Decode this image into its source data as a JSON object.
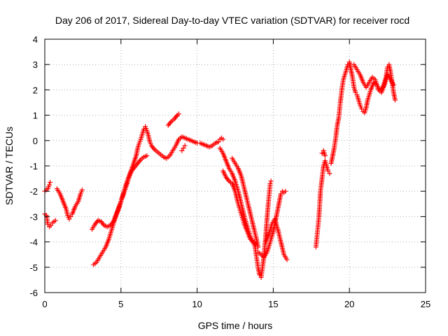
{
  "chart_data": {
    "type": "scatter",
    "title": "Day 206 of 2017, Sidereal Day-to-day VTEC variation (SDTVAR) for receiver rocd",
    "xlabel": "GPS time / hours",
    "ylabel": "SDTVAR / TECUs",
    "xlim": [
      0,
      25
    ],
    "ylim": [
      -6,
      4
    ],
    "xticks": [
      "0",
      "5",
      "10",
      "15",
      "20",
      "25"
    ],
    "yticks": [
      "-6",
      "-5",
      "-4",
      "-3",
      "-2",
      "-1",
      "0",
      "1",
      "2",
      "3",
      "4"
    ],
    "grid": true,
    "marker": "+",
    "color": "#ff0000",
    "segments": [
      [
        [
          0.0,
          -2.9
        ],
        [
          0.1,
          -2.95
        ],
        [
          0.15,
          -3.1
        ],
        [
          0.2,
          -3.3
        ],
        [
          0.3,
          -3.4
        ],
        [
          0.4,
          -3.35
        ],
        [
          0.5,
          -3.25
        ],
        [
          0.6,
          -3.2
        ],
        [
          0.7,
          -3.15
        ]
      ],
      [
        [
          0.0,
          -2.0
        ],
        [
          0.1,
          -1.95
        ],
        [
          0.2,
          -1.9
        ],
        [
          0.3,
          -1.75
        ],
        [
          0.35,
          -1.65
        ]
      ],
      [
        [
          0.8,
          -1.9
        ],
        [
          1.0,
          -2.1
        ],
        [
          1.2,
          -2.4
        ],
        [
          1.4,
          -2.7
        ],
        [
          1.5,
          -2.95
        ],
        [
          1.6,
          -3.1
        ],
        [
          1.7,
          -3.0
        ],
        [
          1.8,
          -2.9
        ],
        [
          2.0,
          -2.6
        ],
        [
          2.2,
          -2.4
        ],
        [
          2.35,
          -2.1
        ],
        [
          2.45,
          -1.95
        ]
      ],
      [
        [
          3.1,
          -3.5
        ],
        [
          3.3,
          -3.3
        ],
        [
          3.5,
          -3.15
        ],
        [
          3.7,
          -3.2
        ],
        [
          3.9,
          -3.35
        ],
        [
          4.1,
          -3.4
        ],
        [
          4.3,
          -3.35
        ],
        [
          4.5,
          -3.2
        ],
        [
          4.7,
          -2.9
        ],
        [
          4.9,
          -2.6
        ],
        [
          5.1,
          -2.2
        ],
        [
          5.3,
          -1.8
        ],
        [
          5.5,
          -1.45
        ],
        [
          5.7,
          -1.2
        ],
        [
          5.9,
          -1.05
        ],
        [
          6.1,
          -0.9
        ],
        [
          6.3,
          -0.75
        ],
        [
          6.5,
          -0.65
        ],
        [
          6.7,
          -0.6
        ]
      ],
      [
        [
          3.2,
          -4.9
        ],
        [
          3.4,
          -4.8
        ],
        [
          3.6,
          -4.6
        ],
        [
          3.8,
          -4.4
        ],
        [
          4.0,
          -4.2
        ],
        [
          4.2,
          -3.9
        ],
        [
          4.4,
          -3.5
        ],
        [
          4.6,
          -3.1
        ],
        [
          4.8,
          -2.75
        ],
        [
          5.0,
          -2.4
        ],
        [
          5.2,
          -2.05
        ],
        [
          5.4,
          -1.7
        ],
        [
          5.6,
          -1.3
        ],
        [
          5.8,
          -0.95
        ],
        [
          6.0,
          -0.6
        ],
        [
          6.1,
          -0.3
        ],
        [
          6.2,
          -0.1
        ],
        [
          6.3,
          0.05
        ],
        [
          6.4,
          0.25
        ],
        [
          6.5,
          0.45
        ],
        [
          6.6,
          0.55
        ],
        [
          6.7,
          0.4
        ],
        [
          6.8,
          0.2
        ],
        [
          6.9,
          -0.05
        ],
        [
          7.0,
          -0.2
        ],
        [
          7.2,
          -0.35
        ],
        [
          7.4,
          -0.45
        ],
        [
          7.6,
          -0.55
        ],
        [
          7.8,
          -0.65
        ],
        [
          8.0,
          -0.7
        ],
        [
          8.2,
          -0.6
        ],
        [
          8.4,
          -0.4
        ],
        [
          8.6,
          -0.2
        ],
        [
          8.8,
          0.05
        ],
        [
          9.0,
          0.15
        ],
        [
          9.2,
          0.1
        ],
        [
          9.4,
          0.05
        ],
        [
          9.6,
          0.0
        ],
        [
          9.8,
          -0.05
        ],
        [
          10.0,
          -0.1
        ],
        [
          10.2,
          -0.1
        ],
        [
          10.4,
          -0.15
        ],
        [
          10.6,
          -0.2
        ],
        [
          10.8,
          -0.25
        ],
        [
          11.0,
          -0.2
        ],
        [
          11.2,
          -0.1
        ],
        [
          11.4,
          -0.05
        ],
        [
          11.5,
          0.05
        ],
        [
          11.6,
          0.1
        ],
        [
          11.7,
          0.05
        ]
      ],
      [
        [
          8.1,
          0.6
        ],
        [
          8.3,
          0.75
        ],
        [
          8.5,
          0.85
        ],
        [
          8.7,
          1.0
        ],
        [
          8.8,
          1.05
        ]
      ],
      [
        [
          9.0,
          -0.4
        ],
        [
          9.1,
          -0.3
        ],
        [
          9.2,
          -0.2
        ]
      ],
      [
        [
          11.5,
          -0.3
        ],
        [
          11.7,
          -0.5
        ],
        [
          11.9,
          -0.8
        ],
        [
          12.1,
          -1.1
        ],
        [
          12.3,
          -1.3
        ],
        [
          12.5,
          -1.6
        ],
        [
          12.7,
          -2.0
        ],
        [
          12.9,
          -2.5
        ],
        [
          13.1,
          -3.0
        ],
        [
          13.3,
          -3.4
        ],
        [
          13.5,
          -3.8
        ],
        [
          13.7,
          -4.05
        ],
        [
          13.8,
          -4.2
        ],
        [
          13.9,
          -4.6
        ],
        [
          14.0,
          -5.0
        ],
        [
          14.1,
          -5.3
        ],
        [
          14.2,
          -5.4
        ],
        [
          14.3,
          -5.0
        ],
        [
          14.4,
          -4.5
        ],
        [
          14.5,
          -3.8
        ],
        [
          14.6,
          -3.0
        ],
        [
          14.7,
          -2.3
        ],
        [
          14.8,
          -1.7
        ],
        [
          14.85,
          -1.6
        ]
      ],
      [
        [
          11.7,
          -1.2
        ],
        [
          11.9,
          -1.45
        ],
        [
          12.1,
          -1.6
        ],
        [
          12.3,
          -1.7
        ],
        [
          12.5,
          -2.0
        ],
        [
          12.7,
          -2.5
        ],
        [
          12.9,
          -2.9
        ],
        [
          13.1,
          -3.3
        ],
        [
          13.3,
          -3.6
        ],
        [
          13.5,
          -3.9
        ],
        [
          13.7,
          -4.0
        ],
        [
          13.85,
          -4.1
        ]
      ],
      [
        [
          12.3,
          -0.7
        ],
        [
          12.5,
          -0.9
        ],
        [
          12.7,
          -1.1
        ],
        [
          12.9,
          -1.4
        ],
        [
          13.1,
          -1.9
        ],
        [
          13.3,
          -2.4
        ],
        [
          13.5,
          -2.9
        ],
        [
          13.7,
          -3.4
        ],
        [
          13.9,
          -3.9
        ],
        [
          14.0,
          -4.2
        ]
      ],
      [
        [
          14.0,
          -4.4
        ],
        [
          14.2,
          -4.5
        ],
        [
          14.4,
          -4.6
        ],
        [
          14.6,
          -4.4
        ],
        [
          14.8,
          -4.0
        ],
        [
          15.0,
          -3.6
        ],
        [
          15.2,
          -3.0
        ],
        [
          15.3,
          -2.7
        ],
        [
          15.4,
          -2.4
        ],
        [
          15.5,
          -2.1
        ],
        [
          15.6,
          -2.0
        ],
        [
          15.7,
          -2.05
        ],
        [
          15.8,
          -2.0
        ]
      ],
      [
        [
          14.5,
          -4.0
        ],
        [
          14.7,
          -3.7
        ],
        [
          14.9,
          -3.3
        ],
        [
          15.1,
          -3.1
        ],
        [
          15.3,
          -3.5
        ],
        [
          15.5,
          -4.0
        ],
        [
          15.7,
          -4.5
        ],
        [
          15.9,
          -4.7
        ]
      ],
      [
        [
          17.8,
          -4.2
        ],
        [
          17.9,
          -3.6
        ],
        [
          18.0,
          -3.0
        ],
        [
          18.1,
          -2.0
        ],
        [
          18.2,
          -1.5
        ],
        [
          18.3,
          -1.0
        ],
        [
          18.4,
          -0.8
        ],
        [
          18.5,
          -1.0
        ],
        [
          18.6,
          -1.2
        ],
        [
          18.7,
          -1.3
        ]
      ],
      [
        [
          18.2,
          -0.5
        ],
        [
          18.3,
          -0.4
        ],
        [
          18.4,
          -0.6
        ]
      ],
      [
        [
          18.8,
          -0.9
        ],
        [
          18.9,
          -0.6
        ],
        [
          19.0,
          -0.3
        ],
        [
          19.1,
          0.1
        ],
        [
          19.2,
          0.6
        ],
        [
          19.3,
          0.9
        ],
        [
          19.4,
          1.5
        ],
        [
          19.5,
          2.0
        ],
        [
          19.6,
          2.4
        ],
        [
          19.7,
          2.6
        ],
        [
          19.8,
          2.8
        ],
        [
          19.9,
          3.0
        ],
        [
          20.0,
          3.1
        ],
        [
          20.1,
          2.8
        ],
        [
          20.2,
          2.5
        ],
        [
          20.3,
          2.1
        ],
        [
          20.4,
          1.9
        ],
        [
          20.5,
          1.8
        ],
        [
          20.6,
          1.6
        ],
        [
          20.7,
          1.4
        ],
        [
          20.8,
          1.25
        ],
        [
          20.9,
          1.15
        ],
        [
          21.0,
          1.1
        ],
        [
          21.1,
          1.3
        ],
        [
          21.2,
          1.6
        ],
        [
          21.4,
          2.0
        ],
        [
          21.6,
          2.3
        ],
        [
          21.8,
          2.2
        ],
        [
          22.0,
          2.0
        ],
        [
          22.2,
          2.1
        ],
        [
          22.4,
          2.5
        ],
        [
          22.5,
          2.9
        ],
        [
          22.6,
          3.0
        ],
        [
          22.7,
          2.7
        ],
        [
          22.8,
          2.3
        ],
        [
          22.9,
          1.9
        ],
        [
          23.0,
          1.6
        ]
      ],
      [
        [
          20.3,
          3.0
        ],
        [
          20.5,
          2.8
        ],
        [
          20.7,
          2.6
        ],
        [
          20.9,
          2.3
        ],
        [
          21.1,
          2.1
        ],
        [
          21.3,
          2.3
        ],
        [
          21.5,
          2.5
        ],
        [
          21.7,
          2.4
        ],
        [
          21.9,
          2.0
        ],
        [
          22.1,
          1.9
        ],
        [
          22.3,
          2.2
        ],
        [
          22.5,
          2.6
        ],
        [
          22.7,
          2.4
        ],
        [
          22.9,
          2.2
        ]
      ]
    ]
  }
}
